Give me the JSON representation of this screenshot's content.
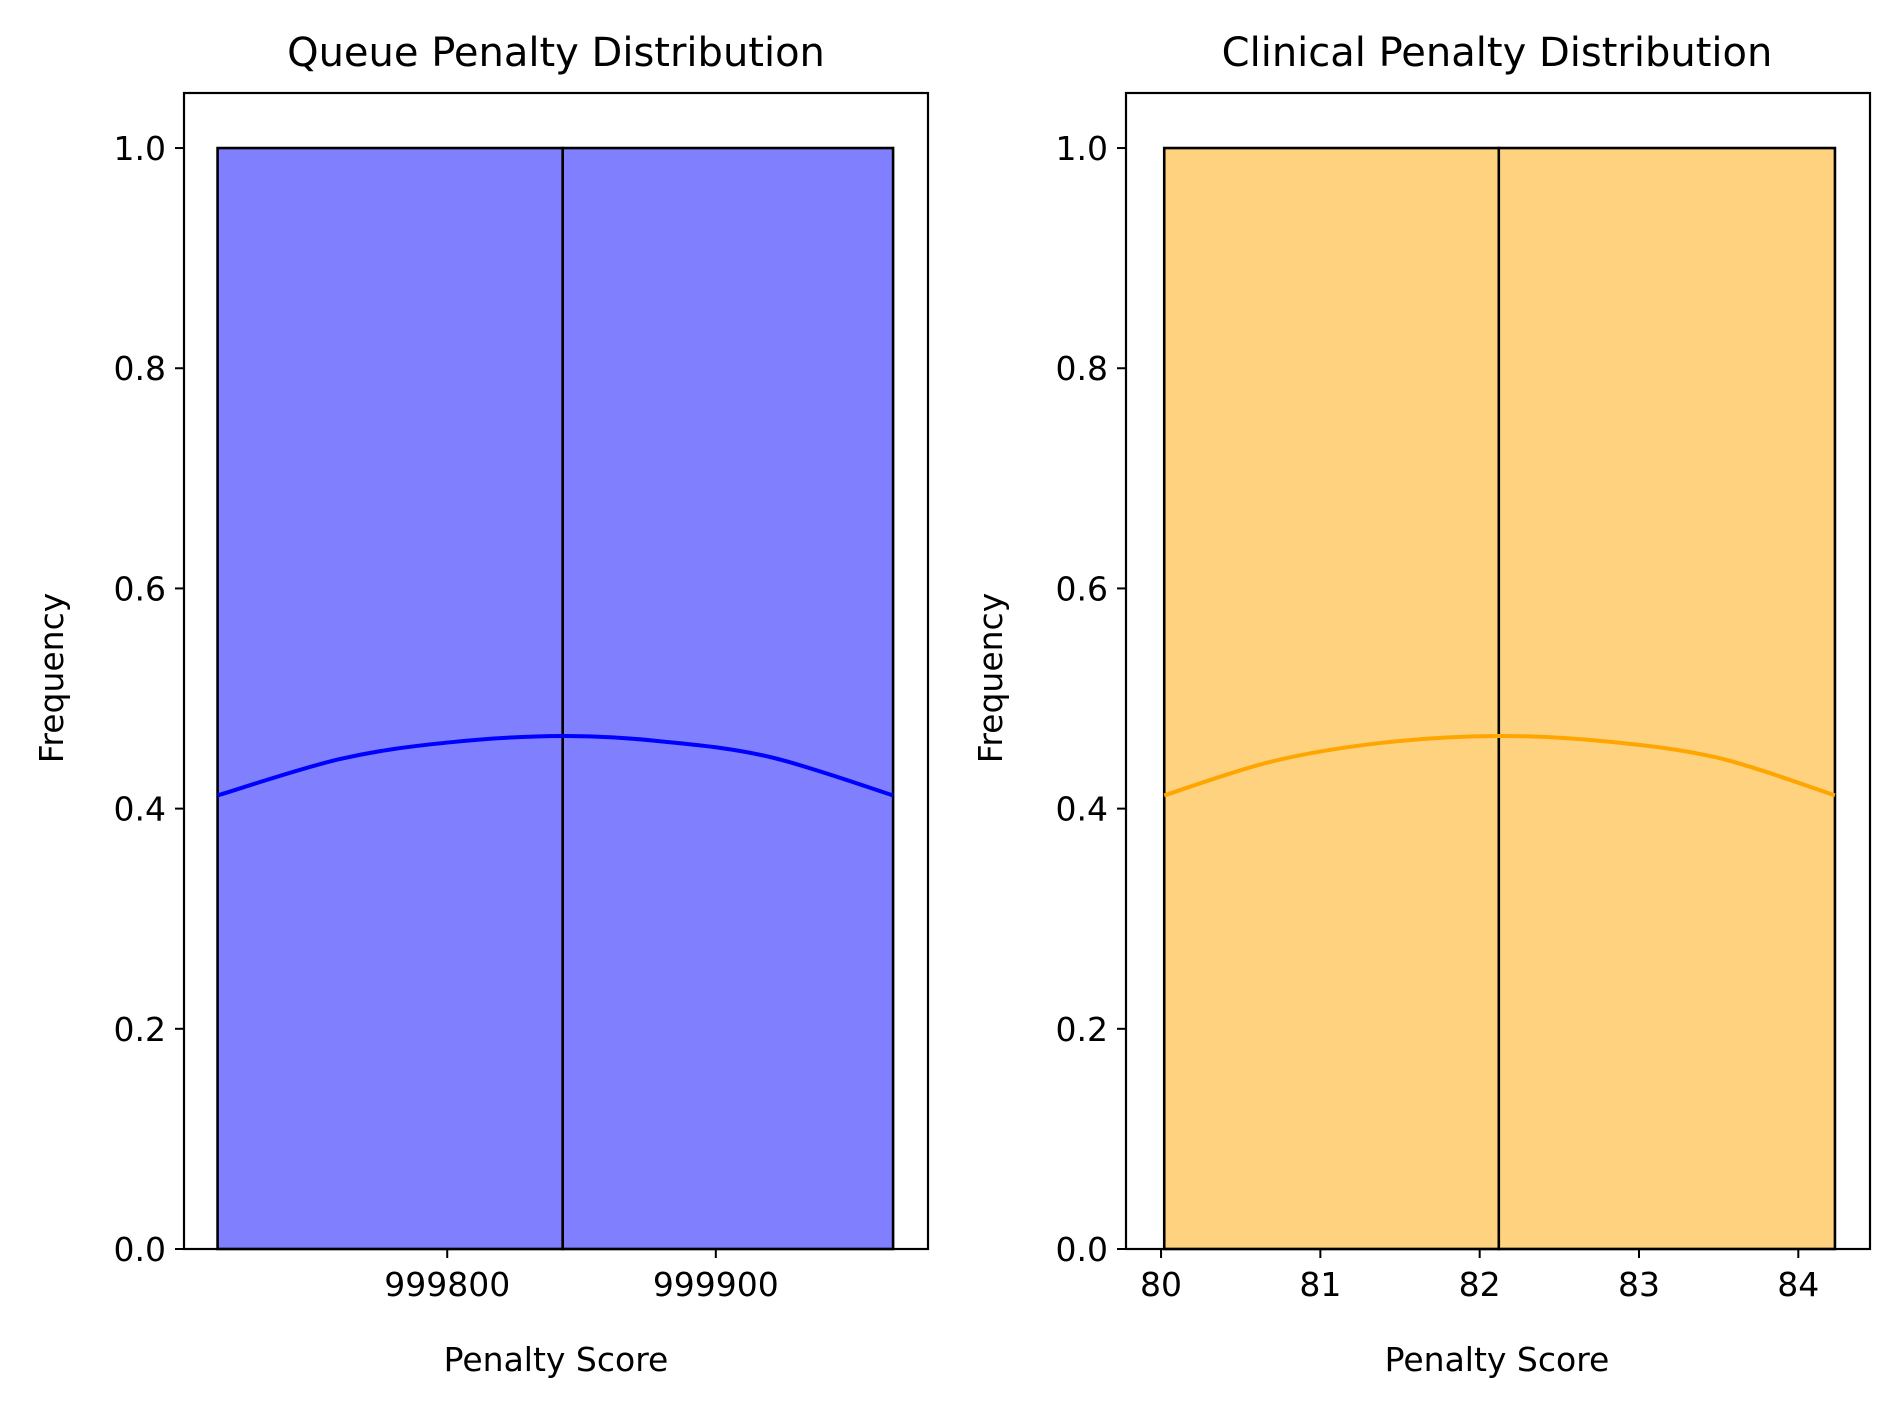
{
  "chart_data": [
    {
      "type": "bar",
      "title": "Queue Penalty Distribution",
      "xlabel": "Penalty Score",
      "ylabel": "Frequency",
      "xlim": [
        999702,
        999979
      ],
      "ylim": [
        0,
        1.05
      ],
      "xticks": [
        999800,
        999900
      ],
      "xtick_labels": [
        "999800",
        "999900"
      ],
      "yticks": [
        0,
        0.2,
        0.4,
        0.6,
        0.8,
        1.0
      ],
      "ytick_labels": [
        "0.0",
        "0.2",
        "0.4",
        "0.6",
        "0.8",
        "1.0"
      ],
      "bins": [
        {
          "x0": 999714.5,
          "x1": 999843.0,
          "value": 1.0
        },
        {
          "x0": 999843.0,
          "x1": 999966.0,
          "value": 1.0
        }
      ],
      "kde": {
        "x": [
          999714.5,
          999760,
          999800,
          999843,
          999880,
          999920,
          999966
        ],
        "y": [
          0.412,
          0.445,
          0.46,
          0.466,
          0.461,
          0.447,
          0.412
        ]
      },
      "bar_color": "#8080ff",
      "edge_color": "#000000",
      "line_color": "#0000ff",
      "grid": false
    },
    {
      "type": "bar",
      "title": "Clinical Penalty Distribution",
      "xlabel": "Penalty Score",
      "ylabel": "Frequency",
      "xlim": [
        79.78,
        84.45
      ],
      "ylim": [
        0,
        1.05
      ],
      "xticks": [
        80,
        81,
        82,
        83,
        84
      ],
      "xtick_labels": [
        "80",
        "81",
        "82",
        "83",
        "84"
      ],
      "yticks": [
        0,
        0.2,
        0.4,
        0.6,
        0.8,
        1.0
      ],
      "ytick_labels": [
        "0.0",
        "0.2",
        "0.4",
        "0.6",
        "0.8",
        "1.0"
      ],
      "bins": [
        {
          "x0": 80.02,
          "x1": 82.12,
          "value": 1.0
        },
        {
          "x0": 82.12,
          "x1": 84.23,
          "value": 1.0
        }
      ],
      "kde": {
        "x": [
          80.02,
          80.7,
          81.4,
          82.12,
          82.8,
          83.5,
          84.23
        ],
        "y": [
          0.412,
          0.443,
          0.46,
          0.466,
          0.461,
          0.446,
          0.412
        ]
      },
      "bar_color": "#ffd280",
      "edge_color": "#000000",
      "line_color": "#ffa500",
      "grid": false
    }
  ]
}
